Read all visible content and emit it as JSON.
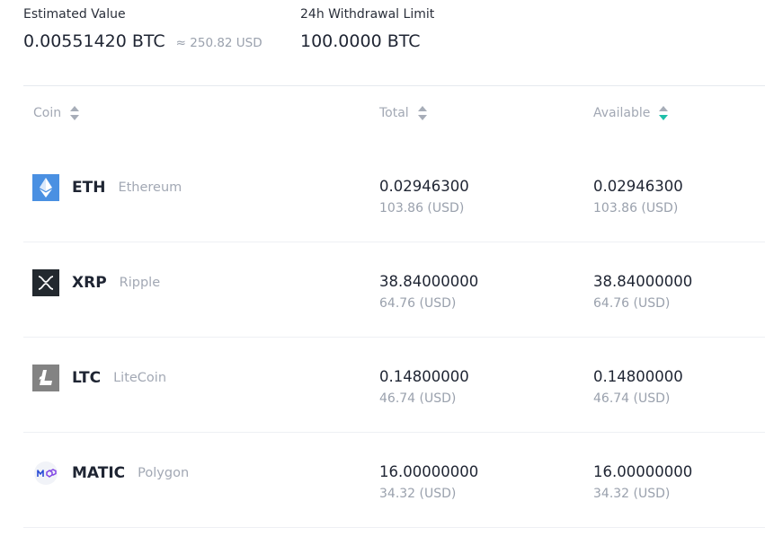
{
  "summary": {
    "estimated_label": "Estimated Value",
    "estimated_value": "0.00551420 BTC",
    "estimated_usd": "≈ 250.82 USD",
    "withdrawal_label": "24h Withdrawal Limit",
    "withdrawal_value": "100.0000 BTC"
  },
  "table": {
    "headers": {
      "coin": "Coin",
      "total": "Total",
      "available": "Available"
    },
    "active_sort": "available",
    "sort_accent": "#1fbfa9",
    "rows": [
      {
        "symbol": "ETH",
        "name": "Ethereum",
        "icon": "ethereum-icon",
        "total": "0.02946300",
        "total_usd": "103.86 (USD)",
        "available": "0.02946300",
        "available_usd": "103.86 (USD)"
      },
      {
        "symbol": "XRP",
        "name": "Ripple",
        "icon": "ripple-icon",
        "total": "38.84000000",
        "total_usd": "64.76 (USD)",
        "available": "38.84000000",
        "available_usd": "64.76 (USD)"
      },
      {
        "symbol": "LTC",
        "name": "LiteCoin",
        "icon": "litecoin-icon",
        "total": "0.14800000",
        "total_usd": "46.74 (USD)",
        "available": "0.14800000",
        "available_usd": "46.74 (USD)"
      },
      {
        "symbol": "MATIC",
        "name": "Polygon",
        "icon": "polygon-icon",
        "total": "16.00000000",
        "total_usd": "34.32 (USD)",
        "available": "16.00000000",
        "available_usd": "34.32 (USD)"
      }
    ]
  }
}
